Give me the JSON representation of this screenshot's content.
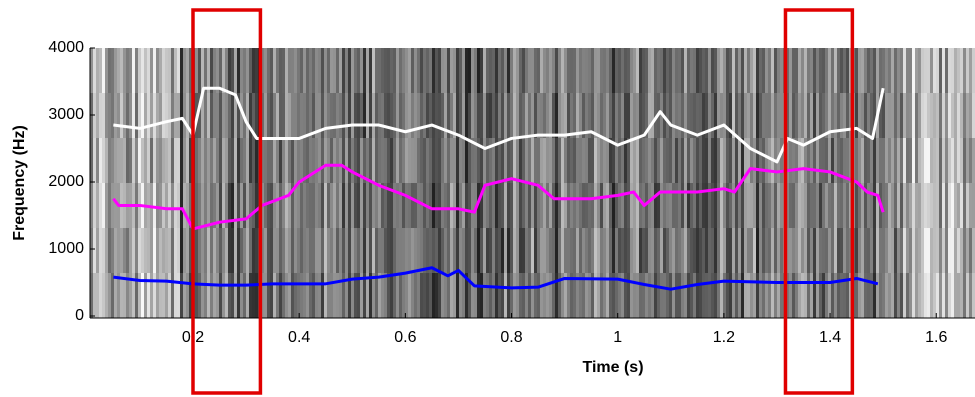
{
  "chart_data": {
    "type": "line",
    "xlabel": "Time (s)",
    "ylabel": "Frequency (Hz)",
    "xlim": [
      0.006,
      1.673
    ],
    "ylim": [
      -30,
      4000
    ],
    "xticks": [
      0.2,
      0.4,
      0.6,
      0.8,
      1,
      1.2,
      1.4,
      1.6
    ],
    "yticks": [
      0,
      1000,
      2000,
      3000,
      4000
    ],
    "highlights": [
      [
        0.2,
        0.327
      ],
      [
        1.316,
        1.442
      ]
    ],
    "highlight_color": "#e00000",
    "series": [
      {
        "color": "#ffffff",
        "x": [
          0.05,
          0.1,
          0.15,
          0.18,
          0.2,
          0.22,
          0.25,
          0.28,
          0.3,
          0.32,
          0.35,
          0.4,
          0.45,
          0.5,
          0.55,
          0.6,
          0.65,
          0.7,
          0.75,
          0.8,
          0.85,
          0.9,
          0.95,
          1.0,
          1.05,
          1.08,
          1.1,
          1.15,
          1.2,
          1.25,
          1.3,
          1.32,
          1.35,
          1.4,
          1.45,
          1.48,
          1.5
        ],
        "values": [
          2850,
          2800,
          2900,
          2950,
          2700,
          3400,
          3400,
          3300,
          2900,
          2650,
          2650,
          2650,
          2800,
          2850,
          2850,
          2750,
          2850,
          2700,
          2500,
          2650,
          2700,
          2700,
          2750,
          2550,
          2700,
          3050,
          2850,
          2700,
          2850,
          2500,
          2300,
          2650,
          2550,
          2750,
          2800,
          2650,
          3400
        ]
      },
      {
        "color": "#ff00ff",
        "x": [
          0.05,
          0.06,
          0.1,
          0.15,
          0.18,
          0.2,
          0.25,
          0.3,
          0.33,
          0.38,
          0.4,
          0.45,
          0.48,
          0.5,
          0.55,
          0.6,
          0.65,
          0.7,
          0.73,
          0.75,
          0.8,
          0.85,
          0.88,
          0.95,
          1.0,
          1.03,
          1.05,
          1.08,
          1.15,
          1.2,
          1.22,
          1.25,
          1.3,
          1.35,
          1.4,
          1.45,
          1.47,
          1.49,
          1.5
        ],
        "values": [
          1750,
          1650,
          1650,
          1600,
          1600,
          1300,
          1400,
          1450,
          1650,
          1800,
          2000,
          2250,
          2250,
          2150,
          1950,
          1800,
          1600,
          1600,
          1550,
          1950,
          2050,
          1950,
          1750,
          1750,
          1800,
          1850,
          1650,
          1850,
          1850,
          1900,
          1850,
          2200,
          2150,
          2200,
          2150,
          2000,
          1850,
          1800,
          1550
        ]
      },
      {
        "color": "#0000ff",
        "x": [
          0.05,
          0.1,
          0.15,
          0.2,
          0.25,
          0.3,
          0.35,
          0.45,
          0.5,
          0.55,
          0.6,
          0.65,
          0.68,
          0.7,
          0.73,
          0.8,
          0.85,
          0.9,
          1.0,
          1.05,
          1.1,
          1.15,
          1.2,
          1.3,
          1.4,
          1.45,
          1.49
        ],
        "values": [
          580,
          530,
          520,
          480,
          460,
          460,
          480,
          480,
          550,
          580,
          640,
          720,
          600,
          680,
          450,
          420,
          430,
          560,
          550,
          470,
          400,
          470,
          520,
          500,
          500,
          560,
          480
        ]
      }
    ]
  }
}
